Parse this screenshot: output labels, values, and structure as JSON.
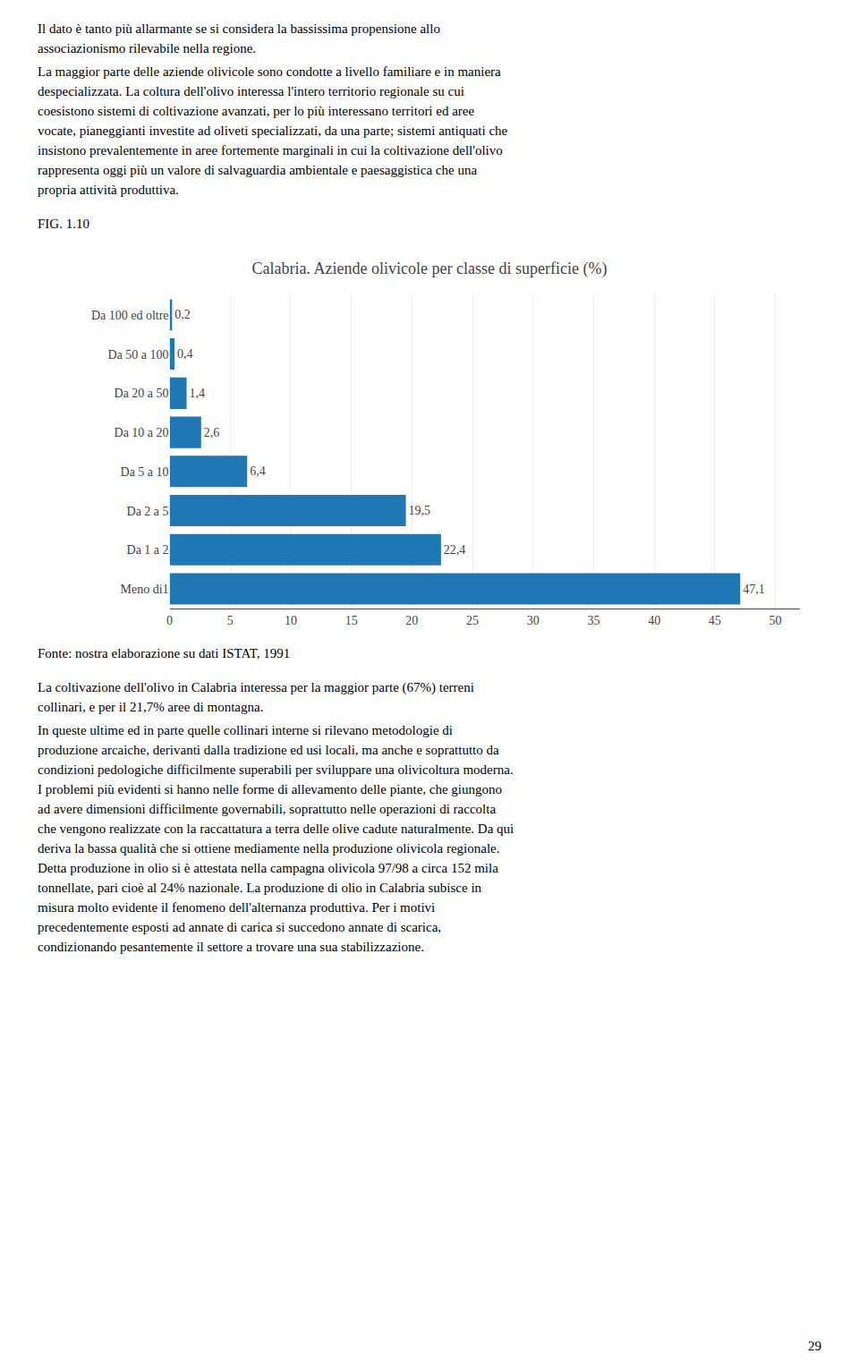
{
  "chart_data": {
    "type": "bar",
    "orientation": "horizontal",
    "title": "Calabria. Aziende olivicole per classe di superficie (%)",
    "categories": [
      "Da 100 ed oltre",
      "Da 50 a 100",
      "Da 20 a 50",
      "Da 10 a 20",
      "Da 5 a 10",
      "Da 2 a 5",
      "Da 1 a 2",
      "Meno di1"
    ],
    "values": [
      0.2,
      0.4,
      1.4,
      2.6,
      6.4,
      19.5,
      22.4,
      47.1
    ],
    "value_labels": [
      "0,2",
      "0,4",
      "1,4",
      "2,6",
      "6,4",
      "19,5",
      "22,4",
      "47,1"
    ],
    "data_labels": true,
    "xlim": [
      0,
      52
    ],
    "xticks": [
      0,
      5,
      10,
      15,
      20,
      25,
      30,
      35,
      40,
      45,
      50
    ],
    "grid": true,
    "annotations": [
      "Il dato è tanto più allarmante se si considera la bassissima propensione allo",
      "associazionismo rilevabile nella regione.",
      "La maggior parte delle aziende olivicole sono condotte a livello familiare e in maniera",
      "despecializzata. La coltura dell'olivo interessa l'intero territorio regionale su cui",
      "coesistono sistemi di coltivazione avanzati, per lo più interessano territori ed aree",
      "vocate, pianeggianti investite ad oliveti specializzati, da una parte; sistemi antiquati che",
      "insistono prevalentemente in aree fortemente marginali in cui la coltivazione dell'olivo",
      "rappresenta oggi più un valore di salvaguardia ambientale e paesaggistica che una",
      "propria attività produttiva.",
      "FIG. 1.10",
      "Fonte: nostra elaborazione su dati ISTAT, 1991",
      "La coltivazione dell'olivo in Calabria interessa per la maggior parte (67%) terreni",
      "collinari, e per il 21,7% aree di montagna.",
      "In queste ultime ed in parte quelle collinari interne si rilevano metodologie di",
      "produzione arcaiche, derivanti dalla tradizione ed usi locali, ma anche e soprattutto da",
      "condizioni pedologiche difficilmente superabili per sviluppare una olivicoltura moderna.",
      "I problemi più evidenti si hanno nelle forme di allevamento delle piante, che giungono",
      "ad avere dimensioni difficilmente governabili, soprattutto nelle operazioni di raccolta",
      "che vengono realizzate con la raccattatura a terra delle olive cadute naturalmente. Da qui",
      "deriva la bassa qualità che si ottiene mediamente nella produzione olivicola regionale.",
      "Detta produzione in olio si è attestata nella campagna olivicola 97/98 a circa 152 mila",
      "tonnellate, pari cioè al 24% nazionale. La produzione di olio in Calabria subisce in",
      "misura molto evidente il fenomeno dell'alternanza produttiva. Per i motivi",
      "precedentemente esposti ad annate di carica si succedono annate di scarica,",
      "condizionando pesantemente il settore a trovare una sua stabilizzazione.",
      "29"
    ]
  }
}
